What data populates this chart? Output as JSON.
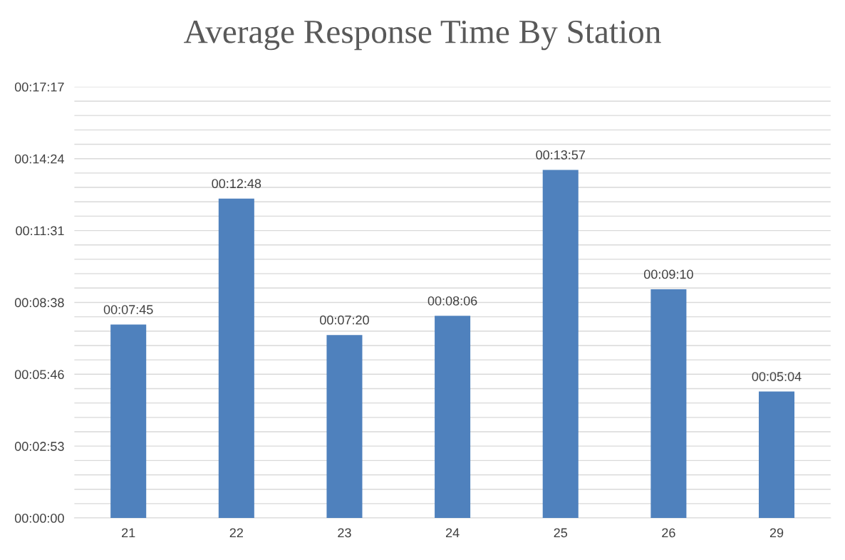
{
  "chart_data": {
    "type": "bar",
    "title": "Average Response Time By Station",
    "categories": [
      "21",
      "22",
      "23",
      "24",
      "25",
      "26",
      "29"
    ],
    "values": [
      465,
      768,
      440,
      486,
      837,
      550,
      304
    ],
    "value_labels": [
      "00:07:45",
      "00:12:48",
      "00:07:20",
      "00:08:06",
      "00:13:57",
      "00:09:10",
      "00:05:04"
    ],
    "color": "#4f81bd",
    "ylim": [
      0,
      1036.8
    ],
    "yticks": [
      {
        "value": 0,
        "label": "00:00:00"
      },
      {
        "value": 34.56,
        "label": null
      },
      {
        "value": 69.12,
        "label": null
      },
      {
        "value": 103.68,
        "label": null
      },
      {
        "value": 138.24,
        "label": null
      },
      {
        "value": 172.8,
        "label": "00:02:53"
      },
      {
        "value": 207.36,
        "label": null
      },
      {
        "value": 241.92,
        "label": null
      },
      {
        "value": 276.48,
        "label": null
      },
      {
        "value": 311.04,
        "label": null
      },
      {
        "value": 345.6,
        "label": "00:05:46"
      },
      {
        "value": 380.16,
        "label": null
      },
      {
        "value": 414.72,
        "label": null
      },
      {
        "value": 449.28,
        "label": null
      },
      {
        "value": 483.84,
        "label": null
      },
      {
        "value": 518.4,
        "label": "00:08:38"
      },
      {
        "value": 552.96,
        "label": null
      },
      {
        "value": 587.52,
        "label": null
      },
      {
        "value": 622.08,
        "label": null
      },
      {
        "value": 656.64,
        "label": null
      },
      {
        "value": 691.2,
        "label": "00:11:31"
      },
      {
        "value": 725.76,
        "label": null
      },
      {
        "value": 760.32,
        "label": null
      },
      {
        "value": 794.88,
        "label": null
      },
      {
        "value": 829.44,
        "label": null
      },
      {
        "value": 864,
        "label": "00:14:24"
      },
      {
        "value": 898.56,
        "label": null
      },
      {
        "value": 933.12,
        "label": null
      },
      {
        "value": 967.68,
        "label": null
      },
      {
        "value": 1002.24,
        "label": null
      },
      {
        "value": 1036.8,
        "label": "00:17:17"
      }
    ],
    "grid": "y"
  }
}
